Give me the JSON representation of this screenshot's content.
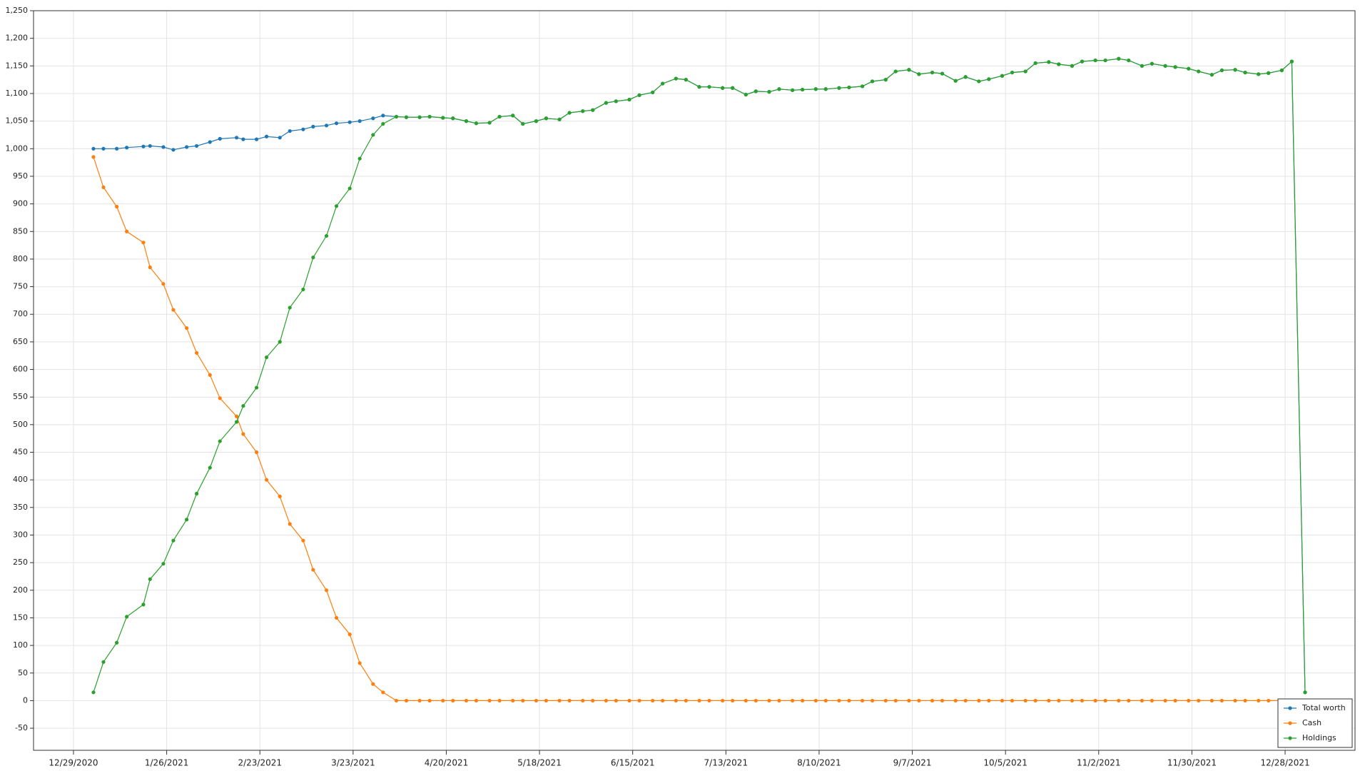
{
  "chart_data": {
    "type": "line",
    "x": [
      "1/4/2021",
      "1/7/2021",
      "1/11/2021",
      "1/14/2021",
      "1/19/2021",
      "1/21/2021",
      "1/25/2021",
      "1/28/2021",
      "2/1/2021",
      "2/4/2021",
      "2/8/2021",
      "2/11/2021",
      "2/16/2021",
      "2/18/2021",
      "2/22/2021",
      "2/25/2021",
      "3/1/2021",
      "3/4/2021",
      "3/8/2021",
      "3/11/2021",
      "3/15/2021",
      "3/18/2021",
      "3/22/2021",
      "3/25/2021",
      "3/29/2021",
      "4/1/2021",
      "4/5/2021",
      "4/8/2021",
      "4/12/2021",
      "4/15/2021",
      "4/19/2021",
      "4/22/2021",
      "4/26/2021",
      "4/29/2021",
      "5/3/2021",
      "5/6/2021",
      "5/10/2021",
      "5/13/2021",
      "5/17/2021",
      "5/20/2021",
      "5/24/2021",
      "5/27/2021",
      "5/31/2021",
      "6/3/2021",
      "6/7/2021",
      "6/10/2021",
      "6/14/2021",
      "6/17/2021",
      "6/21/2021",
      "6/24/2021",
      "6/28/2021",
      "7/1/2021",
      "7/5/2021",
      "7/8/2021",
      "7/12/2021",
      "7/15/2021",
      "7/19/2021",
      "7/22/2021",
      "7/26/2021",
      "7/29/2021",
      "8/2/2021",
      "8/5/2021",
      "8/9/2021",
      "8/12/2021",
      "8/16/2021",
      "8/19/2021",
      "8/23/2021",
      "8/26/2021",
      "8/30/2021",
      "9/2/2021",
      "9/6/2021",
      "9/9/2021",
      "9/13/2021",
      "9/16/2021",
      "9/20/2021",
      "9/23/2021",
      "9/27/2021",
      "9/30/2021",
      "10/4/2021",
      "10/7/2021",
      "10/11/2021",
      "10/14/2021",
      "10/18/2021",
      "10/21/2021",
      "10/25/2021",
      "10/28/2021",
      "11/1/2021",
      "11/4/2021",
      "11/8/2021",
      "11/11/2021",
      "11/15/2021",
      "11/18/2021",
      "11/22/2021",
      "11/25/2021",
      "11/29/2021",
      "12/2/2021",
      "12/6/2021",
      "12/9/2021",
      "12/13/2021",
      "12/16/2021",
      "12/20/2021",
      "12/23/2021",
      "12/27/2021",
      "12/30/2021",
      "1/3/2022"
    ],
    "series": [
      {
        "name": "Total worth",
        "color": "#1f77b4",
        "values": [
          1000,
          1000,
          1000,
          1002,
          1004,
          1005,
          1003,
          998,
          1003,
          1005,
          1012,
          1018,
          1020,
          1017,
          1017,
          1022,
          1020,
          1032,
          1035,
          1040,
          1042,
          1046,
          1048,
          1050,
          1055,
          1060,
          1058,
          1057,
          1057,
          1058,
          1056,
          1055,
          1050,
          1046,
          1047,
          1058,
          1060,
          1045,
          1050,
          1055,
          1053,
          1065,
          1068,
          1070,
          1083,
          1086,
          1089,
          1097,
          1102,
          1118,
          1127,
          1125,
          1112,
          1112,
          1110,
          1110,
          1098,
          1104,
          1103,
          1108,
          1106,
          1107,
          1108,
          1108,
          1110,
          1111,
          1113,
          1122,
          1125,
          1140,
          1143,
          1135,
          1138,
          1136,
          1123,
          1130,
          1122,
          1126,
          1132,
          1138,
          1140,
          1155,
          1157,
          1153,
          1150,
          1158,
          1160,
          1160,
          1163,
          1160,
          1150,
          1154,
          1150,
          1148,
          1145,
          1140,
          1134,
          1142,
          1143,
          1138,
          1135,
          1137,
          1142,
          1158,
          15
        ]
      },
      {
        "name": "Cash",
        "color": "#ff7f0e",
        "values": [
          985,
          930,
          895,
          850,
          830,
          785,
          755,
          708,
          675,
          630,
          590,
          548,
          515,
          483,
          450,
          400,
          370,
          320,
          290,
          237,
          200,
          150,
          120,
          68,
          30,
          15,
          0,
          0,
          0,
          0,
          0,
          0,
          0,
          0,
          0,
          0,
          0,
          0,
          0,
          0,
          0,
          0,
          0,
          0,
          0,
          0,
          0,
          0,
          0,
          0,
          0,
          0,
          0,
          0,
          0,
          0,
          0,
          0,
          0,
          0,
          0,
          0,
          0,
          0,
          0,
          0,
          0,
          0,
          0,
          0,
          0,
          0,
          0,
          0,
          0,
          0,
          0,
          0,
          0,
          0,
          0,
          0,
          0,
          0,
          0,
          0,
          0,
          0,
          0,
          0,
          0,
          0,
          0,
          0,
          0,
          0,
          0,
          0,
          0,
          0,
          0,
          0,
          0,
          0,
          0
        ]
      },
      {
        "name": "Holdings",
        "color": "#2ca02c",
        "values": [
          15,
          70,
          105,
          152,
          174,
          220,
          248,
          290,
          328,
          375,
          422,
          470,
          505,
          534,
          567,
          622,
          650,
          712,
          745,
          803,
          842,
          896,
          928,
          982,
          1025,
          1045,
          1058,
          1057,
          1057,
          1058,
          1056,
          1055,
          1050,
          1046,
          1047,
          1058,
          1060,
          1045,
          1050,
          1055,
          1053,
          1065,
          1068,
          1070,
          1083,
          1086,
          1089,
          1097,
          1102,
          1118,
          1127,
          1125,
          1112,
          1112,
          1110,
          1110,
          1098,
          1104,
          1103,
          1108,
          1106,
          1107,
          1108,
          1108,
          1110,
          1111,
          1113,
          1122,
          1125,
          1140,
          1143,
          1135,
          1138,
          1136,
          1123,
          1130,
          1122,
          1126,
          1132,
          1138,
          1140,
          1155,
          1157,
          1153,
          1150,
          1158,
          1160,
          1160,
          1163,
          1160,
          1150,
          1154,
          1150,
          1148,
          1145,
          1140,
          1134,
          1142,
          1143,
          1138,
          1135,
          1137,
          1142,
          1158,
          15
        ]
      }
    ],
    "xlim": [
      "12/17/2020",
      "1/18/2022"
    ],
    "xticks": [
      "12/29/2020",
      "1/26/2021",
      "2/23/2021",
      "3/23/2021",
      "4/20/2021",
      "5/18/2021",
      "6/15/2021",
      "7/13/2021",
      "8/10/2021",
      "9/7/2021",
      "10/5/2021",
      "11/2/2021",
      "11/30/2021",
      "12/28/2021"
    ],
    "ylim": [
      -90,
      1250
    ],
    "yticks": [
      -50,
      0,
      50,
      100,
      150,
      200,
      250,
      300,
      350,
      400,
      450,
      500,
      550,
      600,
      650,
      700,
      750,
      800,
      850,
      900,
      950,
      {
        "value": 1000,
        "label": "1,000"
      },
      {
        "value": 1050,
        "label": "1,050"
      },
      {
        "value": 1100,
        "label": "1,100"
      },
      {
        "value": 1150,
        "label": "1,150"
      },
      {
        "value": 1200,
        "label": "1,200"
      },
      {
        "value": 1250,
        "label": "1,250"
      }
    ],
    "grid": true,
    "legend": "lower right"
  }
}
